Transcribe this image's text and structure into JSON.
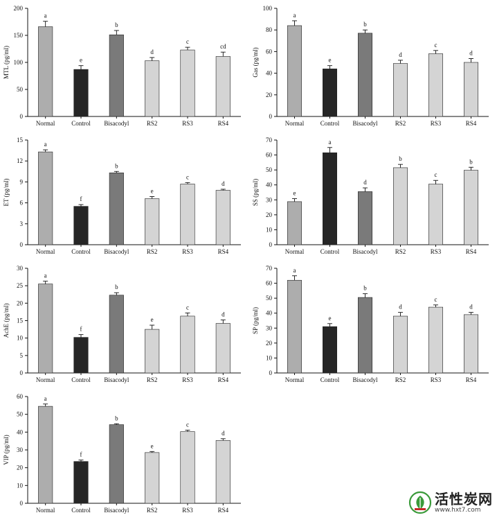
{
  "chart_data": [
    {
      "id": "mtl",
      "type": "bar",
      "categories": [
        "Normal",
        "Control",
        "Bisacodyl",
        "RS2",
        "RS3",
        "RS4"
      ],
      "values": [
        166,
        87,
        151,
        103,
        123,
        111
      ],
      "errors": [
        10,
        7,
        8,
        6,
        5,
        8
      ],
      "letters": [
        "a",
        "e",
        "b",
        "d",
        "c",
        "cd"
      ],
      "ylabel": "MTL (pg/ml)",
      "ylim": [
        0,
        200
      ],
      "yticks": [
        0,
        50,
        100,
        150,
        200
      ]
    },
    {
      "id": "gas",
      "type": "bar",
      "categories": [
        "Normal",
        "Control",
        "Bisacodyl",
        "RS2",
        "RS3",
        "RS4"
      ],
      "values": [
        84,
        44,
        77,
        49,
        58,
        50
      ],
      "errors": [
        4.5,
        3,
        3,
        3,
        3,
        3.5
      ],
      "letters": [
        "a",
        "e",
        "b",
        "d",
        "c",
        "d"
      ],
      "ylabel": "Gas (pg/ml)",
      "ylim": [
        0,
        100
      ],
      "yticks": [
        0,
        20,
        40,
        60,
        80,
        100
      ]
    },
    {
      "id": "et",
      "type": "bar",
      "categories": [
        "Normal",
        "Control",
        "Bisacodyl",
        "RS2",
        "RS3",
        "RS4"
      ],
      "values": [
        13.3,
        5.5,
        10.3,
        6.6,
        8.7,
        7.8
      ],
      "errors": [
        0.3,
        0.25,
        0.2,
        0.3,
        0.2,
        0.15
      ],
      "letters": [
        "a",
        "f",
        "b",
        "e",
        "c",
        "d"
      ],
      "ylabel": "ET (pg/ml)",
      "ylim": [
        0,
        15
      ],
      "yticks": [
        0,
        3,
        6,
        9,
        12,
        15
      ]
    },
    {
      "id": "ss",
      "type": "bar",
      "categories": [
        "Normal",
        "Control",
        "Bisacodyl",
        "RS2",
        "RS3",
        "RS4"
      ],
      "values": [
        28.8,
        61.5,
        35.5,
        51.5,
        40.5,
        49.8
      ],
      "errors": [
        2,
        3.5,
        2.5,
        2.2,
        2.5,
        2
      ],
      "letters": [
        "e",
        "a",
        "d",
        "b",
        "c",
        "b"
      ],
      "ylabel": "SS (pg/ml)",
      "ylim": [
        0,
        70
      ],
      "yticks": [
        0,
        10,
        20,
        30,
        40,
        50,
        60,
        70
      ]
    },
    {
      "id": "ache",
      "type": "bar",
      "categories": [
        "Normal",
        "Control",
        "Bisacodyl",
        "RS2",
        "RS3",
        "RS4"
      ],
      "values": [
        25.5,
        10.2,
        22.3,
        12.5,
        16.3,
        14.2
      ],
      "errors": [
        0.8,
        0.8,
        0.7,
        1.2,
        0.9,
        1
      ],
      "letters": [
        "a",
        "f",
        "b",
        "e",
        "c",
        "d"
      ],
      "ylabel": "AchE (pg/ml)",
      "ylim": [
        0,
        30
      ],
      "yticks": [
        0,
        5,
        10,
        15,
        20,
        25,
        30
      ]
    },
    {
      "id": "sp",
      "type": "bar",
      "categories": [
        "Normal",
        "Control",
        "Bisacodyl",
        "RS2",
        "RS3",
        "RS4"
      ],
      "values": [
        62,
        31,
        50.5,
        38,
        44,
        39
      ],
      "errors": [
        3,
        2,
        2.5,
        2.5,
        1.5,
        1.5
      ],
      "letters": [
        "a",
        "e",
        "b",
        "d",
        "c",
        "d"
      ],
      "ylabel": "SP (pg/ml)",
      "ylim": [
        0,
        70
      ],
      "yticks": [
        0,
        10,
        20,
        30,
        40,
        50,
        60,
        70
      ]
    },
    {
      "id": "vip",
      "type": "bar",
      "categories": [
        "Normal",
        "Control",
        "Bisacodyl",
        "RS2",
        "RS3",
        "RS4"
      ],
      "values": [
        54.5,
        23.5,
        44.2,
        28.5,
        40.3,
        35.3
      ],
      "errors": [
        1.3,
        0.8,
        0.5,
        0.6,
        0.8,
        1
      ],
      "letters": [
        "a",
        "f",
        "b",
        "e",
        "c",
        "d"
      ],
      "ylabel": "VIP (pg/ml)",
      "ylim": [
        0,
        60
      ],
      "yticks": [
        0,
        10,
        20,
        30,
        40,
        50,
        60
      ]
    }
  ],
  "bar_colors": [
    "#adadad",
    "#262626",
    "#7a7a7a",
    "#d4d4d4",
    "#d4d4d4",
    "#d4d4d4"
  ],
  "watermark": {
    "name": "活性炭网",
    "url": "www.hxt7.com"
  }
}
